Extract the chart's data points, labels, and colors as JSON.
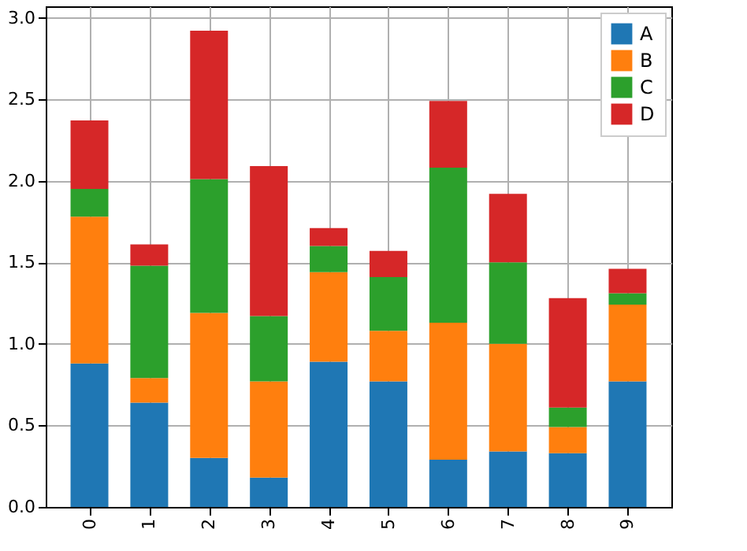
{
  "chart_data": {
    "type": "bar",
    "stacked": true,
    "categories": [
      "0",
      "1",
      "2",
      "3",
      "4",
      "5",
      "6",
      "7",
      "8",
      "9"
    ],
    "series": [
      {
        "name": "A",
        "color": "#1f77b4",
        "values": [
          0.88,
          0.64,
          0.3,
          0.18,
          0.89,
          0.77,
          0.29,
          0.34,
          0.33,
          0.77
        ]
      },
      {
        "name": "B",
        "color": "#ff7f0e",
        "values": [
          0.9,
          0.15,
          0.89,
          0.59,
          0.55,
          0.31,
          0.84,
          0.66,
          0.16,
          0.47
        ]
      },
      {
        "name": "C",
        "color": "#2ca02c",
        "values": [
          0.17,
          0.69,
          0.82,
          0.4,
          0.16,
          0.33,
          0.95,
          0.5,
          0.12,
          0.07
        ]
      },
      {
        "name": "D",
        "color": "#d62728",
        "values": [
          0.42,
          0.13,
          0.91,
          0.92,
          0.11,
          0.16,
          0.41,
          0.42,
          0.67,
          0.15
        ]
      }
    ],
    "ylim": [
      0,
      3.07
    ],
    "yticks": [
      {
        "value": 0,
        "label": "0.0"
      },
      0.5,
      {
        "value": 1,
        "label": "1.0"
      },
      1.5,
      {
        "value": 2,
        "label": "2.0"
      },
      2.5,
      {
        "value": 3,
        "label": "3.0"
      }
    ],
    "grid": true,
    "legend": "top right"
  }
}
